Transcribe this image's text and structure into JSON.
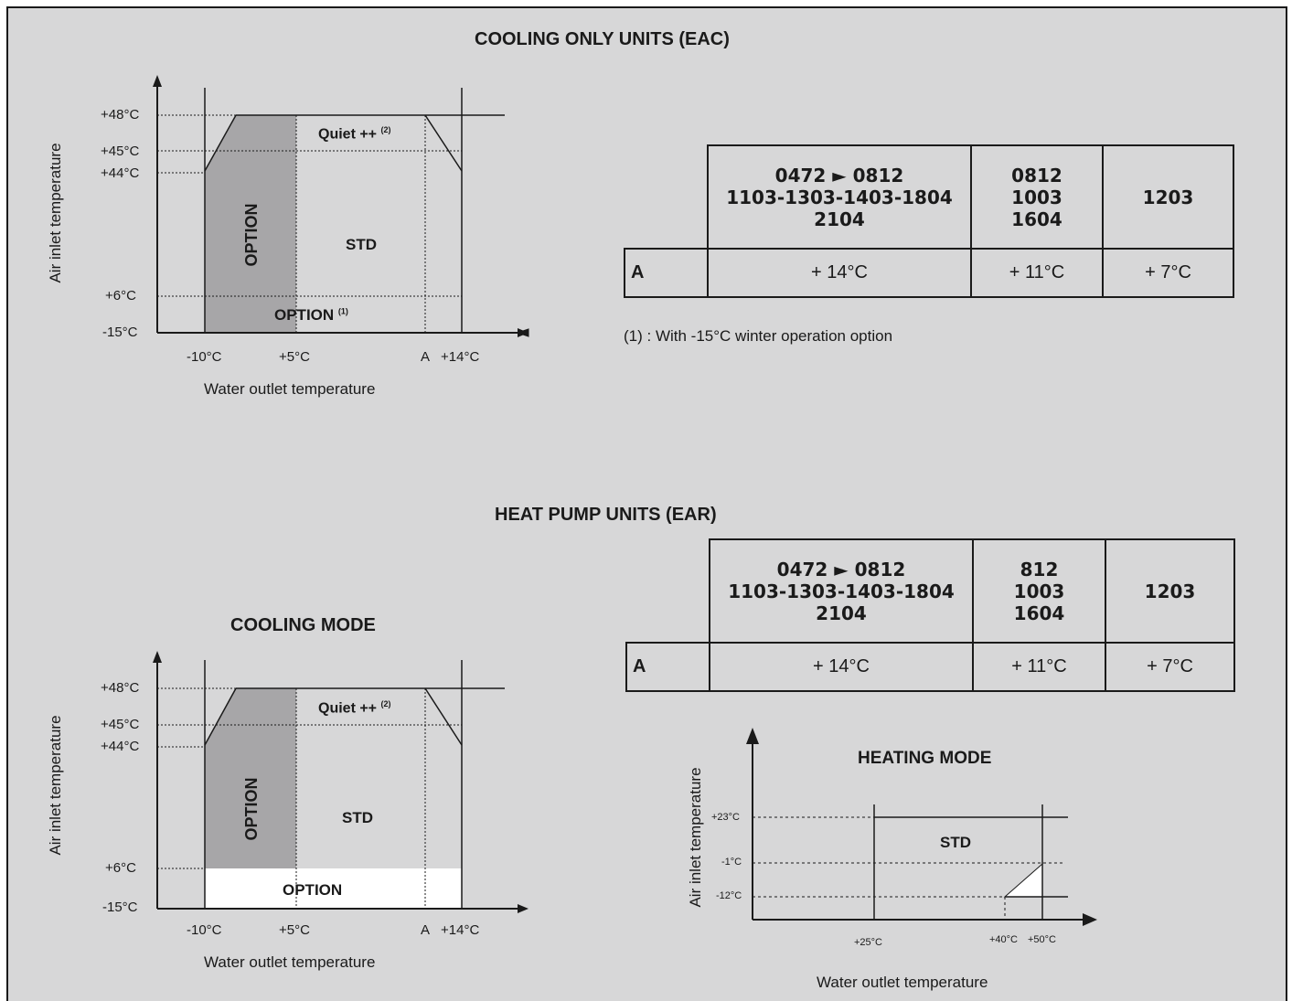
{
  "cooling_only": {
    "title": "COOLING ONLY UNITS (EAC)",
    "chart": {
      "y_axis_label": "Air inlet temperature",
      "x_axis_label": "Water outlet temperature",
      "y_ticks": [
        "+48°C",
        "+45°C",
        "+44°C",
        "+6°C",
        "-15°C"
      ],
      "x_ticks": [
        "-10°C",
        "+5°C",
        "A",
        "+14°C"
      ],
      "regions": {
        "quiet": "Quiet ++",
        "quiet_note": "(2)",
        "option_vertical": "OPTION",
        "std": "STD",
        "option_bottom": "OPTION",
        "option_bottom_note": "(1)"
      }
    },
    "table": {
      "columns": [
        [
          "0472 ► 0812",
          "1103-1303-1403-1804",
          "2104"
        ],
        [
          "0812",
          "1003",
          "1604"
        ],
        [
          "1203"
        ]
      ],
      "row_label": "A",
      "values": [
        "+ 14°C",
        "+ 11°C",
        "+ 7°C"
      ]
    },
    "footnote": "(1) : With -15°C winter operation option"
  },
  "heat_pump": {
    "title": "HEAT PUMP UNITS (EAR)",
    "cooling_mode": {
      "title": "COOLING MODE",
      "y_axis_label": "Air inlet temperature",
      "x_axis_label": "Water outlet temperature",
      "y_ticks": [
        "+48°C",
        "+45°C",
        "+44°C",
        "+6°C",
        "-15°C"
      ],
      "x_ticks": [
        "-10°C",
        "+5°C",
        "A",
        "+14°C"
      ],
      "regions": {
        "quiet": "Quiet ++",
        "quiet_note": "(2)",
        "option_vertical": "OPTION",
        "std": "STD",
        "option_bottom": "OPTION"
      }
    },
    "table": {
      "columns": [
        [
          "0472 ► 0812",
          "1103-1303-1403-1804",
          "2104"
        ],
        [
          "812",
          "1003",
          "1604"
        ],
        [
          "1203"
        ]
      ],
      "row_label": "A",
      "values": [
        "+ 14°C",
        "+ 11°C",
        "+ 7°C"
      ]
    },
    "heating_mode": {
      "title": "HEATING MODE",
      "y_axis_label": "Air inlet temperature",
      "x_axis_label": "Water outlet temperature",
      "y_ticks": [
        "+23°C",
        "-1°C",
        "-12°C"
      ],
      "x_ticks": [
        "+25°C",
        "+40°C",
        "+50°C"
      ],
      "region": "STD"
    }
  },
  "colors": {
    "background": "#d7d7d8",
    "option_fill": "#a7a6a8",
    "white_fill": "#ffffff",
    "line": "#1a1a1a"
  }
}
